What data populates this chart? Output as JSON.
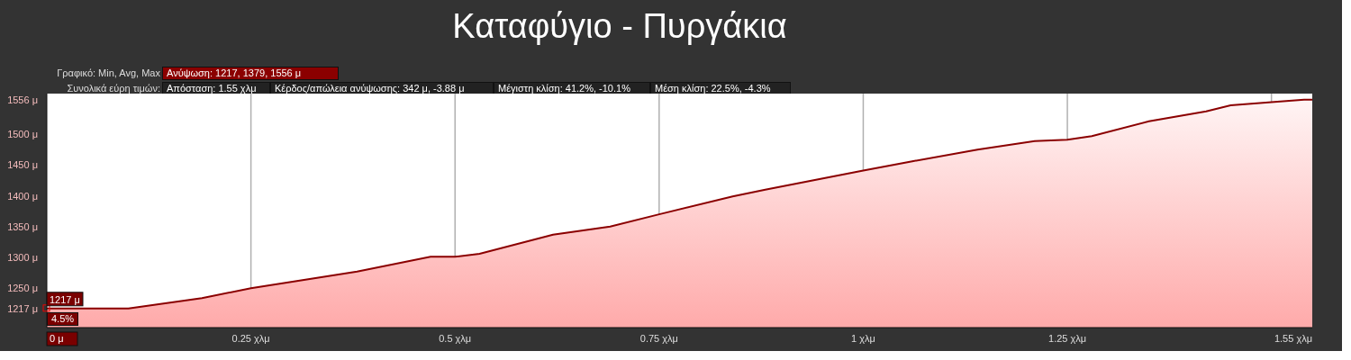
{
  "chart_data": {
    "type": "area",
    "title": "Καταφύγιο - Πυργάκια",
    "annotations": [
      "Γραφικό: Min, Avg, Max",
      "Ανύψωση: 1217, 1379, 1556 μ",
      "Συνολικά εύρη τιμών:",
      "Απόσταση: 1.55 χλμ",
      "Κέρδος/απώλεια ανύψωσης: 342 μ, -3.88 μ",
      "Μέγιστη κλίση: 41.2%, -10.1%",
      "Μέση κλίση: 22.5%, -4.3%",
      {
        "text": "1217 μ",
        "x": 0,
        "y": 1217
      },
      "4.5%"
    ],
    "x": [
      0,
      0.1,
      0.19,
      0.25,
      0.38,
      0.47,
      0.5,
      0.53,
      0.62,
      0.69,
      0.75,
      0.84,
      0.88,
      1.0,
      1.06,
      1.14,
      1.21,
      1.25,
      1.28,
      1.35,
      1.42,
      1.45,
      1.5,
      1.54,
      1.55
    ],
    "series": [
      {
        "color": "#8b0000",
        "values": [
          1217,
          1217,
          1234,
          1250,
          1277,
          1301,
          1301,
          1306,
          1337,
          1350,
          1370,
          1399,
          1410,
          1441,
          1456,
          1475,
          1489,
          1491,
          1497,
          1521,
          1537,
          1547,
          1552,
          1556,
          1556
        ]
      }
    ],
    "xlim": [
      0,
      1.55
    ],
    "xticks": [
      {
        "value": 0,
        "label": "0 μ"
      },
      {
        "value": 0.25,
        "label": "0.25 χλμ"
      },
      {
        "value": 0.5,
        "label": "0.5 χλμ"
      },
      {
        "value": 0.75,
        "label": "0.75 χλμ"
      },
      {
        "value": 1,
        "label": "1 χλμ"
      },
      {
        "value": 1.25,
        "label": "1.25 χλμ"
      },
      {
        "value": 1.5,
        "label": null
      },
      {
        "value": 1.55,
        "label": "1.55 χλμ"
      }
    ],
    "ylim": [
      1186,
      1566
    ],
    "yticks": [
      {
        "value": 1217,
        "label": "1217 μ"
      },
      {
        "value": 1250,
        "label": "1250 μ"
      },
      {
        "value": 1300,
        "label": "1300 μ"
      },
      {
        "value": 1350,
        "label": "1350 μ"
      },
      {
        "value": 1400,
        "label": "1400 μ"
      },
      {
        "value": 1450,
        "label": "1450 μ"
      },
      {
        "value": 1500,
        "label": "1500 μ"
      },
      {
        "value": 1556,
        "label": "1556 μ"
      }
    ],
    "grid": true
  }
}
